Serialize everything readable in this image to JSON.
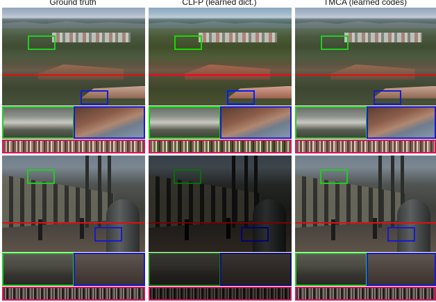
{
  "columns": [
    {
      "title": "Ground truth"
    },
    {
      "title": "CLFP (learned dict.)"
    },
    {
      "title": "TMCA (learned codes)"
    }
  ],
  "colors": {
    "guide_line": "#e01010",
    "zoom_green": "#22cc22",
    "zoom_blue": "#1a1acc",
    "strip_border": "#e01060"
  },
  "rows": [
    {
      "scene": "campus-overview"
    },
    {
      "scene": "arcade-dusk"
    }
  ]
}
